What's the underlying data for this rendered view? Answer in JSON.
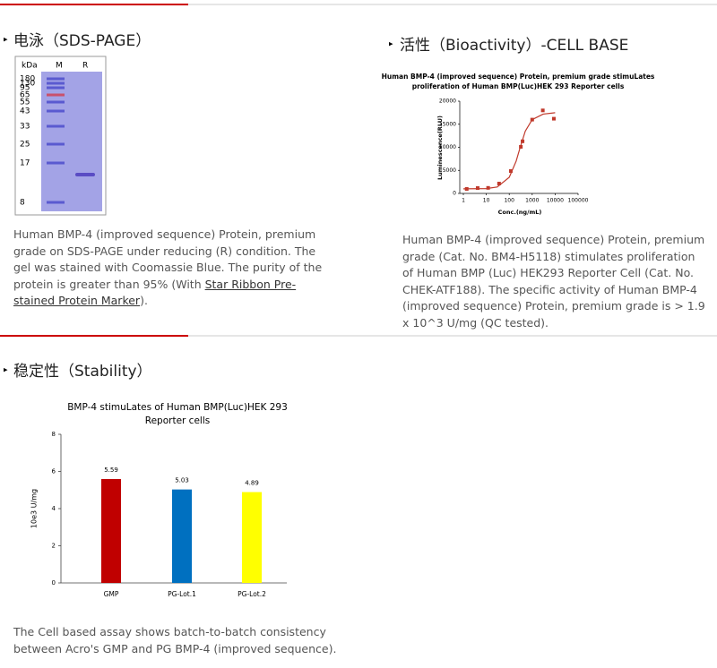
{
  "sds": {
    "heading": "电泳（SDS-PAGE）",
    "gel": {
      "unit": "kDa",
      "lanes": [
        "M",
        "R"
      ],
      "markers": [
        "180",
        "130",
        "95",
        "65",
        "55",
        "43",
        "33",
        "25",
        "17",
        "8"
      ]
    },
    "paragraph": {
      "text": "Human BMP-4 (improved sequence) Protein, premium grade on SDS-PAGE under reducing (R) condition. The gel was stained with Coomassie Blue. The purity of the protein is greater than 95% (With ",
      "link": "Star Ribbon Pre-stained Protein Marker",
      "end": ")."
    }
  },
  "bioactivity": {
    "heading": "活性（Bioactivity）-CELL BASE",
    "paragraph": "Human BMP-4 (improved sequence) Protein, premium grade (Cat. No. BM4-H5118) stimulates proliferation of Human BMP (Luc) HEK293 Reporter Cell (Cat. No. CHEK-ATF188). The specific activity of Human BMP-4 (improved sequence) Protein, premium grade is > 1.9 x 10^3 U/mg (QC tested)."
  },
  "stability": {
    "heading": "稳定性（Stability）",
    "paragraph": "The Cell based assay shows batch-to-batch consistency between Acro's GMP and PG BMP-4 (improved sequence)."
  },
  "chart_data": [
    {
      "type": "scatter",
      "title_lines": [
        "Human BMP-4 (improved sequence) Protein, premium grade stimuLates",
        "proliferation of Human BMP(Luc)HEK 293 Reporter cells"
      ],
      "x_label": "Conc.(ng/mL)",
      "y_label": "Luminescence(RLU)",
      "x_log": true,
      "xlim": [
        1,
        100000
      ],
      "xticks": [
        1,
        10,
        100,
        1000,
        10000,
        100000
      ],
      "ylim": [
        0,
        20000
      ],
      "yticks": [
        0,
        5000,
        10000,
        15000,
        20000
      ],
      "series": [
        {
          "style": "markers",
          "color": "#c0392b",
          "x": [
            1.4,
            4.2,
            12,
            36,
            117,
            320,
            380,
            1000,
            2900,
            8800
          ],
          "values": [
            970,
            1160,
            1200,
            2140,
            4850,
            10100,
            11300,
            16000,
            18000,
            16200
          ]
        },
        {
          "style": "line",
          "color": "#c0392b",
          "x": [
            1,
            10,
            30,
            100,
            200,
            300,
            500,
            1000,
            3000,
            10000
          ],
          "values": [
            1000,
            1050,
            1400,
            3500,
            7000,
            10000,
            13500,
            16000,
            17200,
            17500
          ]
        }
      ]
    },
    {
      "type": "bar",
      "title_lines": [
        "BMP-4 stimuLates of Human BMP(Luc)HEK 293",
        "Reporter cells"
      ],
      "y_label": "10e3 U/mg",
      "categories": [
        "GMP",
        "PG-Lot.1",
        "PG-Lot.2"
      ],
      "values": [
        5.59,
        5.03,
        4.89
      ],
      "colors": [
        "#c00000",
        "#0070c0",
        "#ffff00"
      ],
      "ylim": [
        0,
        8
      ],
      "yticks": [
        0,
        2,
        4,
        6,
        8
      ]
    }
  ]
}
